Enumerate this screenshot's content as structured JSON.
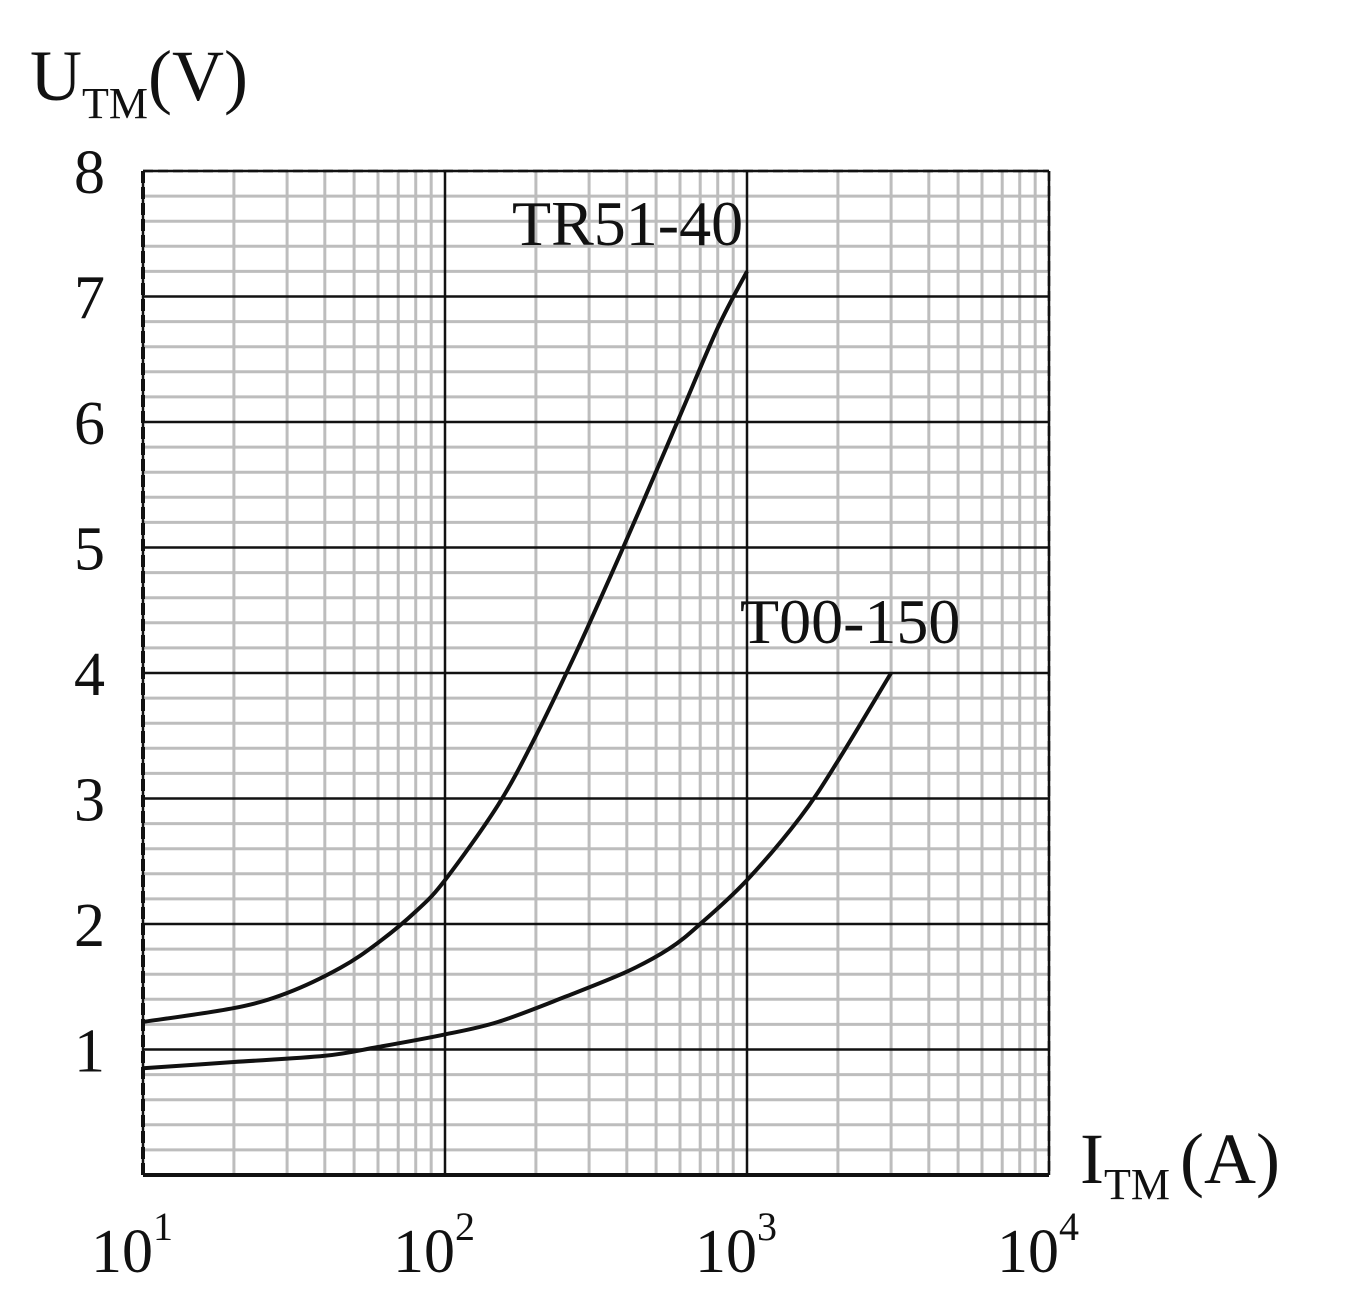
{
  "chart_data": {
    "type": "line",
    "x_scale": "log",
    "xlim": [
      10,
      10000
    ],
    "ylim": [
      0,
      8
    ],
    "grid": true,
    "x_axis_label": {
      "main": "I",
      "sub": "TM",
      "unit": "(A)"
    },
    "y_axis_label": {
      "main": "U",
      "sub": "TM",
      "unit": "(V)"
    },
    "x_ticks": [
      {
        "value": 10,
        "base": "10",
        "exp": "1"
      },
      {
        "value": 100,
        "base": "10",
        "exp": "2"
      },
      {
        "value": 1000,
        "base": "10",
        "exp": "3"
      },
      {
        "value": 10000,
        "base": "10",
        "exp": "4"
      }
    ],
    "y_ticks": [
      "1",
      "2",
      "3",
      "4",
      "5",
      "6",
      "7",
      "8"
    ],
    "series": [
      {
        "name": "TR51-40",
        "color": "#111111",
        "points": [
          [
            10,
            1.22
          ],
          [
            20,
            1.33
          ],
          [
            30,
            1.45
          ],
          [
            45,
            1.65
          ],
          [
            60,
            1.85
          ],
          [
            80,
            2.1
          ],
          [
            100,
            2.35
          ],
          [
            150,
            2.95
          ],
          [
            200,
            3.5
          ],
          [
            270,
            4.15
          ],
          [
            350,
            4.75
          ],
          [
            450,
            5.35
          ],
          [
            600,
            6.05
          ],
          [
            800,
            6.75
          ],
          [
            1000,
            7.2
          ]
        ]
      },
      {
        "name": "T00-150",
        "color": "#111111",
        "points": [
          [
            10,
            0.85
          ],
          [
            20,
            0.9
          ],
          [
            40,
            0.95
          ],
          [
            60,
            1.02
          ],
          [
            100,
            1.12
          ],
          [
            150,
            1.22
          ],
          [
            250,
            1.42
          ],
          [
            400,
            1.62
          ],
          [
            550,
            1.8
          ],
          [
            700,
            2.0
          ],
          [
            1000,
            2.35
          ],
          [
            1500,
            2.85
          ],
          [
            2000,
            3.3
          ],
          [
            3000,
            4.0
          ]
        ]
      }
    ]
  }
}
